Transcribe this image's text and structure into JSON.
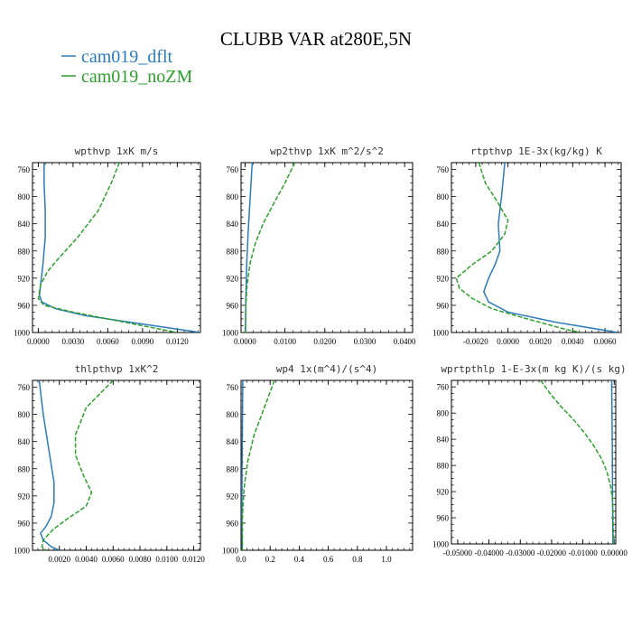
{
  "title": "CLUBB VAR at280E,5N",
  "legend": {
    "entries": [
      {
        "label": "cam019_dflt",
        "color": "#2b7bba",
        "dash": "solid"
      },
      {
        "label": "cam019_noZM",
        "color": "#2ca02c",
        "dash": "dashed"
      }
    ]
  },
  "chart_data": [
    {
      "type": "line",
      "title": "wpthvp  1xK m/s",
      "ylim": [
        1000,
        750
      ],
      "yticks": [
        760,
        800,
        840,
        880,
        920,
        960,
        1000
      ],
      "xlim": [
        -0.0005,
        0.014
      ],
      "xticks": [
        0.0,
        0.003,
        0.006,
        0.009,
        0.012
      ],
      "xticklabels": [
        "0.0000",
        "0.0030",
        "0.0060",
        "0.0090",
        "0.0120"
      ],
      "series": [
        {
          "name": "cam019_dflt",
          "color": "#2b7bba",
          "dash": "solid",
          "p": [
            750,
            780,
            820,
            860,
            900,
            930,
            945,
            955,
            965,
            975,
            985,
            995,
            1000
          ],
          "v": [
            0.0005,
            0.0005,
            0.0006,
            0.0006,
            0.0004,
            0.0002,
            0.0001,
            0.0003,
            0.0015,
            0.004,
            0.008,
            0.012,
            0.014
          ]
        },
        {
          "name": "cam019_noZM",
          "color": "#2ca02c",
          "dash": "dashed",
          "p": [
            750,
            780,
            820,
            860,
            890,
            910,
            930,
            950,
            960,
            970,
            980,
            990,
            1000
          ],
          "v": [
            0.007,
            0.0063,
            0.0052,
            0.0034,
            0.0018,
            0.0008,
            0.0002,
            0.0,
            0.0005,
            0.003,
            0.006,
            0.009,
            0.012
          ]
        }
      ]
    },
    {
      "type": "line",
      "title": "wp2thvp  1xK m^2/s^2",
      "ylim": [
        1000,
        750
      ],
      "yticks": [
        760,
        800,
        840,
        880,
        920,
        960,
        1000
      ],
      "xlim": [
        -0.001,
        0.042
      ],
      "xticks": [
        0.0,
        0.01,
        0.02,
        0.03,
        0.04
      ],
      "xticklabels": [
        "0.0000",
        "0.0100",
        "0.0200",
        "0.0300",
        "0.0400"
      ],
      "series": [
        {
          "name": "cam019_dflt",
          "color": "#2b7bba",
          "dash": "solid",
          "p": [
            750,
            800,
            850,
            900,
            950,
            1000
          ],
          "v": [
            0.0018,
            0.0013,
            0.0008,
            0.0004,
            0.0002,
            0.0001
          ]
        },
        {
          "name": "cam019_noZM",
          "color": "#2ca02c",
          "dash": "dashed",
          "p": [
            750,
            780,
            810,
            840,
            870,
            900,
            930,
            960,
            1000
          ],
          "v": [
            0.0125,
            0.01,
            0.0072,
            0.0045,
            0.0025,
            0.0012,
            0.0005,
            0.0002,
            0.0001
          ]
        }
      ]
    },
    {
      "type": "line",
      "title": "rtpthvp  1E-3x(kg/kg) K",
      "ylim": [
        1000,
        750
      ],
      "yticks": [
        760,
        800,
        840,
        880,
        920,
        960,
        1000
      ],
      "xlim": [
        -0.0035,
        0.007
      ],
      "xticks": [
        -0.002,
        0.0,
        0.002,
        0.004,
        0.006
      ],
      "xticklabels": [
        "-0.0020",
        "0.0000",
        "0.0020",
        "0.0040",
        "0.0060"
      ],
      "series": [
        {
          "name": "cam019_dflt",
          "color": "#2b7bba",
          "dash": "solid",
          "p": [
            750,
            800,
            840,
            880,
            900,
            920,
            940,
            955,
            970,
            985,
            1000
          ],
          "v": [
            -0.0002,
            -0.0004,
            -0.0006,
            -0.0005,
            -0.0008,
            -0.0012,
            -0.0015,
            -0.0012,
            0.0,
            0.003,
            0.0068
          ]
        },
        {
          "name": "cam019_noZM",
          "color": "#2ca02c",
          "dash": "dashed",
          "p": [
            750,
            780,
            810,
            835,
            855,
            880,
            900,
            920,
            935,
            950,
            965,
            980,
            995,
            1000
          ],
          "v": [
            -0.0018,
            -0.0014,
            -0.0006,
            0.0,
            -0.0002,
            -0.001,
            -0.0022,
            -0.0032,
            -0.003,
            -0.0022,
            -0.001,
            0.0012,
            0.0035,
            0.0045
          ]
        }
      ]
    },
    {
      "type": "line",
      "title": "thlpthvp  1xK^2",
      "ylim": [
        1000,
        750
      ],
      "yticks": [
        760,
        800,
        840,
        880,
        920,
        960,
        1000
      ],
      "xlim": [
        0.0,
        0.0125
      ],
      "xticks": [
        0.002,
        0.004,
        0.006,
        0.008,
        0.01,
        0.012
      ],
      "xticklabels": [
        "0.0020",
        "0.0040",
        "0.0060",
        "0.0080",
        "0.0100",
        "0.0120"
      ],
      "series": [
        {
          "name": "cam019_dflt",
          "color": "#2b7bba",
          "dash": "solid",
          "p": [
            750,
            800,
            850,
            900,
            930,
            950,
            965,
            975,
            985,
            995,
            1000
          ],
          "v": [
            0.0005,
            0.0008,
            0.0012,
            0.0016,
            0.0016,
            0.0014,
            0.001,
            0.0006,
            0.0008,
            0.0014,
            0.002
          ]
        },
        {
          "name": "cam019_noZM",
          "color": "#2ca02c",
          "dash": "dashed",
          "p": [
            750,
            790,
            830,
            860,
            890,
            915,
            935,
            955,
            970,
            985,
            995,
            1000
          ],
          "v": [
            0.006,
            0.004,
            0.0032,
            0.0032,
            0.0038,
            0.0044,
            0.004,
            0.0025,
            0.0015,
            0.0008,
            0.0007,
            0.001
          ]
        }
      ]
    },
    {
      "type": "line",
      "title": "wp4  1x(m^4)/(s^4)",
      "ylim": [
        1000,
        750
      ],
      "yticks": [
        760,
        800,
        840,
        880,
        920,
        960,
        1000
      ],
      "xlim": [
        0.0,
        1.18
      ],
      "xticks": [
        0.0,
        0.2,
        0.4,
        0.6,
        0.8,
        1.0
      ],
      "xticklabels": [
        "0.0",
        "0.2",
        "0.4",
        "0.6",
        "0.8",
        "1.0"
      ],
      "series": [
        {
          "name": "cam019_dflt",
          "color": "#2b7bba",
          "dash": "solid",
          "p": [
            750,
            800,
            850,
            900,
            950,
            1000
          ],
          "v": [
            0.012,
            0.01,
            0.008,
            0.006,
            0.006,
            0.008
          ]
        },
        {
          "name": "cam019_noZM",
          "color": "#2ca02c",
          "dash": "dashed",
          "p": [
            750,
            790,
            830,
            870,
            910,
            950,
            1000
          ],
          "v": [
            0.23,
            0.16,
            0.09,
            0.045,
            0.02,
            0.01,
            0.008
          ]
        }
      ]
    },
    {
      "type": "line",
      "title": "wprtpthlp  1-E-3x(m kg K)/(s kg)",
      "ylim": [
        1000,
        750
      ],
      "yticks": [
        760,
        800,
        840,
        880,
        920,
        960,
        1000
      ],
      "xlim": [
        -0.052,
        0.0005
      ],
      "xticks": [
        -0.05,
        -0.04,
        -0.03,
        -0.02,
        -0.01,
        0.0
      ],
      "xticklabels": [
        "-0.05000",
        "-0.04000",
        "-0.03000",
        "-0.02000",
        "-0.01000",
        "0.00000"
      ],
      "series": [
        {
          "name": "cam019_dflt",
          "color": "#2b7bba",
          "dash": "solid",
          "p": [
            750,
            850,
            950,
            1000
          ],
          "v": [
            -0.0008,
            -0.0006,
            -0.0005,
            -0.0004
          ]
        },
        {
          "name": "cam019_noZM",
          "color": "#2ca02c",
          "dash": "dashed",
          "p": [
            750,
            770,
            790,
            810,
            830,
            850,
            870,
            890,
            910,
            930,
            950,
            970,
            990,
            1000
          ],
          "v": [
            -0.0235,
            -0.0205,
            -0.017,
            -0.013,
            -0.0095,
            -0.0065,
            -0.004,
            -0.0023,
            -0.0012,
            -0.0006,
            -0.0004,
            -0.0003,
            -0.0002,
            -0.0002
          ]
        }
      ]
    }
  ]
}
